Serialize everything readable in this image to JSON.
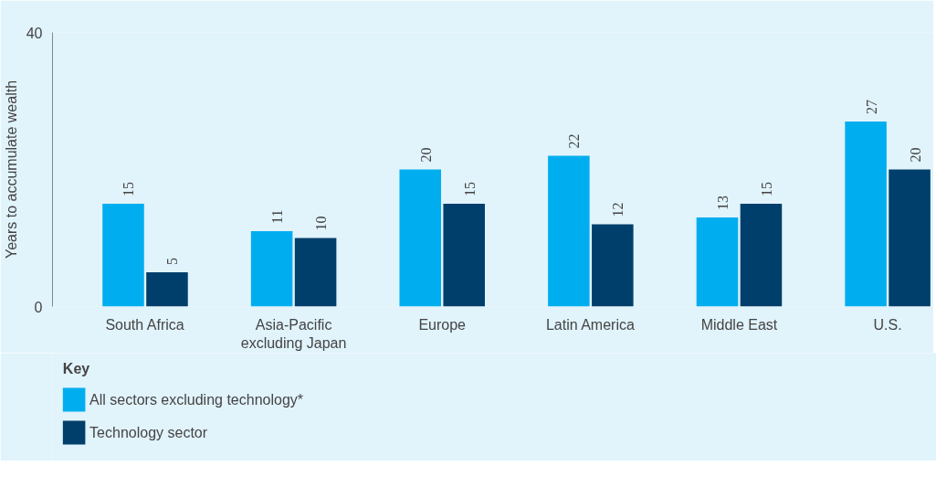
{
  "chart_data": {
    "type": "bar",
    "ylabel": "Years to accumulate wealth",
    "legend_title": "Key",
    "categories": [
      "South Africa",
      "Asia-Pacific excluding Japan",
      "Europe",
      "Latin America",
      "Middle East",
      "U.S."
    ],
    "series": [
      {
        "name": "All sectors excluding technology*",
        "color": "#00aeef",
        "values": [
          15,
          11,
          20,
          22,
          13,
          27
        ]
      },
      {
        "name": "Technology sector",
        "color": "#003f6b",
        "values": [
          5,
          10,
          15,
          12,
          15,
          20
        ]
      }
    ],
    "ylim": [
      0,
      40
    ],
    "yticks": [
      0,
      40
    ],
    "grid": false,
    "legend": "bottom left",
    "data_labels": true
  }
}
